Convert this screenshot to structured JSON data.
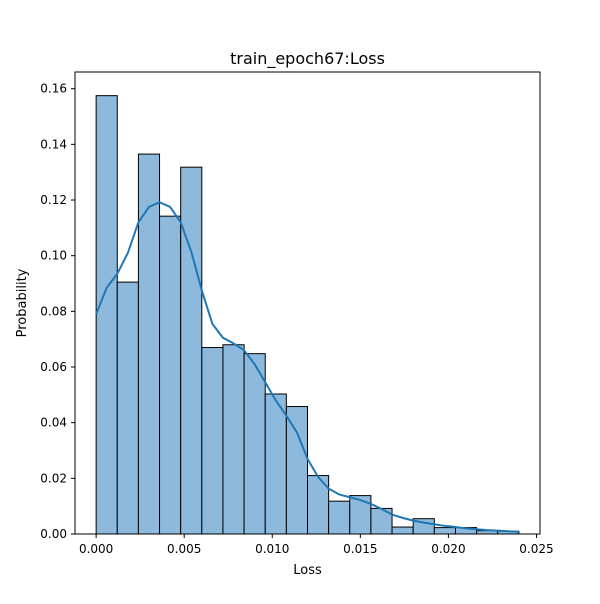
{
  "chart_data": {
    "type": "bar",
    "title": "train_epoch67:Loss",
    "xlabel": "Loss",
    "ylabel": "Probability",
    "xlim": [
      -0.0012,
      0.0252
    ],
    "ylim": [
      0,
      0.166
    ],
    "grid": false,
    "legend": "none",
    "xticks": [
      "0.000",
      "0.005",
      "0.010",
      "0.015",
      "0.020",
      "0.025"
    ],
    "xtick_values": [
      0.0,
      0.005,
      0.01,
      0.015,
      0.02,
      0.025
    ],
    "yticks": [
      "0.00",
      "0.02",
      "0.04",
      "0.06",
      "0.08",
      "0.10",
      "0.12",
      "0.14",
      "0.16"
    ],
    "ytick_values": [
      0.0,
      0.02,
      0.04,
      0.06,
      0.08,
      0.1,
      0.12,
      0.14,
      0.16
    ],
    "bin_edges": [
      0.0,
      0.0012,
      0.0024,
      0.0036,
      0.0048,
      0.006,
      0.0072,
      0.0084,
      0.0096,
      0.0108,
      0.012,
      0.0132,
      0.0144,
      0.0156,
      0.0168,
      0.018,
      0.0192,
      0.0204,
      0.0216,
      0.0228,
      0.024
    ],
    "values": [
      0.1575,
      0.0905,
      0.1365,
      0.1142,
      0.1318,
      0.067,
      0.068,
      0.0648,
      0.0503,
      0.0458,
      0.021,
      0.0118,
      0.0138,
      0.0092,
      0.0025,
      0.0055,
      0.0023,
      0.0023,
      0.0012,
      0.001
    ],
    "kde": {
      "x": [
        0.0,
        0.0006,
        0.0012,
        0.0018,
        0.0024,
        0.003,
        0.0036,
        0.0042,
        0.0048,
        0.0054,
        0.006,
        0.0066,
        0.0072,
        0.0078,
        0.0084,
        0.009,
        0.0096,
        0.0102,
        0.0108,
        0.0114,
        0.012,
        0.0126,
        0.0132,
        0.0138,
        0.0144,
        0.015,
        0.0156,
        0.0162,
        0.0168,
        0.0174,
        0.018,
        0.0186,
        0.0192,
        0.0198,
        0.0204,
        0.021,
        0.0216,
        0.0222,
        0.0228,
        0.0234,
        0.024
      ],
      "y": [
        0.079,
        0.0885,
        0.0935,
        0.101,
        0.112,
        0.1175,
        0.1192,
        0.1175,
        0.112,
        0.1015,
        0.0875,
        0.0755,
        0.0705,
        0.0685,
        0.066,
        0.061,
        0.0545,
        0.048,
        0.0425,
        0.0365,
        0.027,
        0.0205,
        0.0163,
        0.0142,
        0.0132,
        0.0122,
        0.0108,
        0.009,
        0.007,
        0.0058,
        0.0048,
        0.0041,
        0.0035,
        0.0029,
        0.0025,
        0.002,
        0.0017,
        0.0014,
        0.0012,
        0.001,
        0.0008
      ]
    },
    "colors": {
      "bar_fill": "#8dbadc",
      "bar_edge": "#000000",
      "kde_line": "#1f77b4"
    }
  }
}
